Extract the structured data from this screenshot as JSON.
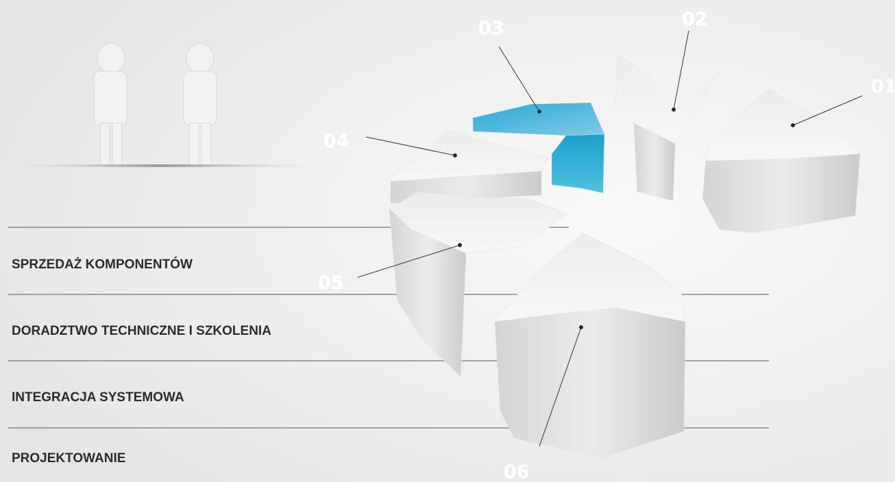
{
  "segments": [
    {
      "label": "01"
    },
    {
      "label": "02"
    },
    {
      "label": "03"
    },
    {
      "label": "04"
    },
    {
      "label": "05"
    },
    {
      "label": "06"
    }
  ],
  "menu": [
    "SPRZEDAŻ KOMPONENTÓW",
    "DORADZTWO TECHNICZNE I SZKOLENIA",
    "INTEGRACJA SYSTEMOWA",
    "PROJEKTOWANIE"
  ]
}
